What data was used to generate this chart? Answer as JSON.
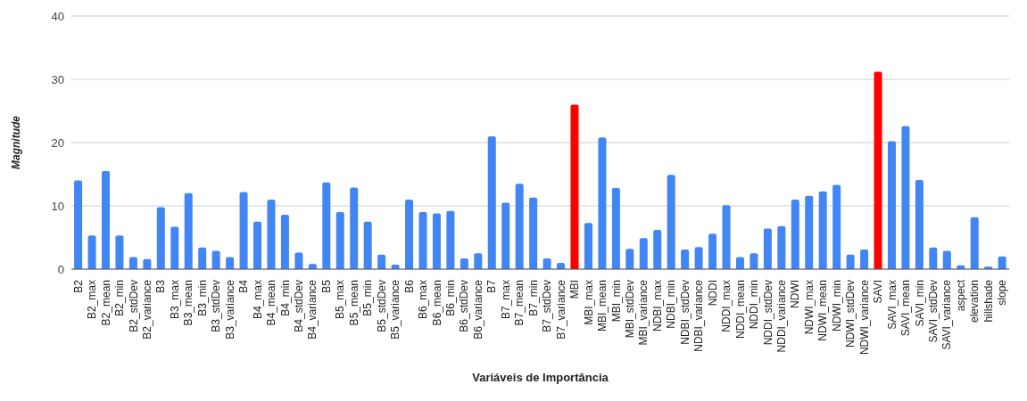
{
  "chart_data": {
    "type": "bar",
    "xlabel": "Variáveis de Importância",
    "ylabel": "Magnitude",
    "categories": [
      "B2",
      "B2_max",
      "B2_mean",
      "B2_min",
      "B2_stdDev",
      "B2_variance",
      "B3",
      "B3_max",
      "B3_mean",
      "B3_min",
      "B3_stdDev",
      "B3_variance",
      "B4",
      "B4_max",
      "B4_mean",
      "B4_min",
      "B4_stdDev",
      "B4_variance",
      "B5",
      "B5_max",
      "B5_mean",
      "B5_min",
      "B5_stdDev",
      "B5_variance",
      "B6",
      "B6_max",
      "B6_mean",
      "B6_min",
      "B6_stdDev",
      "B6_variance",
      "B7",
      "B7_max",
      "B7_mean",
      "B7_min",
      "B7_stdDev",
      "B7_variance",
      "MBI",
      "MBI_max",
      "MBI_mean",
      "MBI_min",
      "MBI_stdDev",
      "MBI_variance",
      "NDBI_max",
      "NDBI_min",
      "NDBI_stdDev",
      "NDBI_variance",
      "NDDI",
      "NDDI_max",
      "NDDI_mean",
      "NDDI_min",
      "NDDI_stdDev",
      "NDDI_variance",
      "NDWI",
      "NDWI_max",
      "NDWI_mean",
      "NDWI_min",
      "NDWI_stdDev",
      "NDWI_variance",
      "SAVI",
      "SAVI_max",
      "SAVI_mean",
      "SAVI_min",
      "SAVI_stdDev",
      "SAVI_variance",
      "aspect",
      "elevation",
      "hillshade",
      "slope"
    ],
    "values": [
      14,
      5.3,
      15.5,
      5.3,
      1.9,
      1.6,
      9.8,
      6.7,
      12,
      3.4,
      2.9,
      1.9,
      12.2,
      7.5,
      11,
      8.6,
      2.6,
      0.8,
      13.7,
      9,
      12.9,
      7.5,
      2.3,
      0.7,
      11,
      9,
      8.8,
      9.2,
      1.7,
      2.5,
      21,
      10.5,
      13.5,
      11.3,
      1.7,
      1,
      26,
      7.3,
      20.8,
      12.8,
      3.2,
      4.9,
      6.2,
      14.9,
      3.1,
      3.5,
      5.6,
      10.1,
      1.9,
      2.5,
      6.4,
      6.8,
      11,
      11.6,
      12.3,
      13.3,
      2.3,
      3.1,
      31.2,
      20.2,
      22.6,
      14.1,
      3.4,
      2.9,
      0.6,
      8.2,
      0.4,
      2
    ],
    "colors": [
      "#4285f4",
      "#4285f4",
      "#4285f4",
      "#4285f4",
      "#4285f4",
      "#4285f4",
      "#4285f4",
      "#4285f4",
      "#4285f4",
      "#4285f4",
      "#4285f4",
      "#4285f4",
      "#4285f4",
      "#4285f4",
      "#4285f4",
      "#4285f4",
      "#4285f4",
      "#4285f4",
      "#4285f4",
      "#4285f4",
      "#4285f4",
      "#4285f4",
      "#4285f4",
      "#4285f4",
      "#4285f4",
      "#4285f4",
      "#4285f4",
      "#4285f4",
      "#4285f4",
      "#4285f4",
      "#4285f4",
      "#4285f4",
      "#4285f4",
      "#4285f4",
      "#4285f4",
      "#4285f4",
      "#ff0000",
      "#4285f4",
      "#4285f4",
      "#4285f4",
      "#4285f4",
      "#4285f4",
      "#4285f4",
      "#4285f4",
      "#4285f4",
      "#4285f4",
      "#4285f4",
      "#4285f4",
      "#4285f4",
      "#4285f4",
      "#4285f4",
      "#4285f4",
      "#4285f4",
      "#4285f4",
      "#4285f4",
      "#4285f4",
      "#4285f4",
      "#4285f4",
      "#ff0000",
      "#4285f4",
      "#4285f4",
      "#4285f4",
      "#4285f4",
      "#4285f4",
      "#4285f4",
      "#4285f4",
      "#4285f4",
      "#4285f4"
    ],
    "ylim": [
      0,
      40
    ],
    "yticks": [
      0,
      10,
      20,
      30,
      40
    ],
    "grid": "y"
  }
}
